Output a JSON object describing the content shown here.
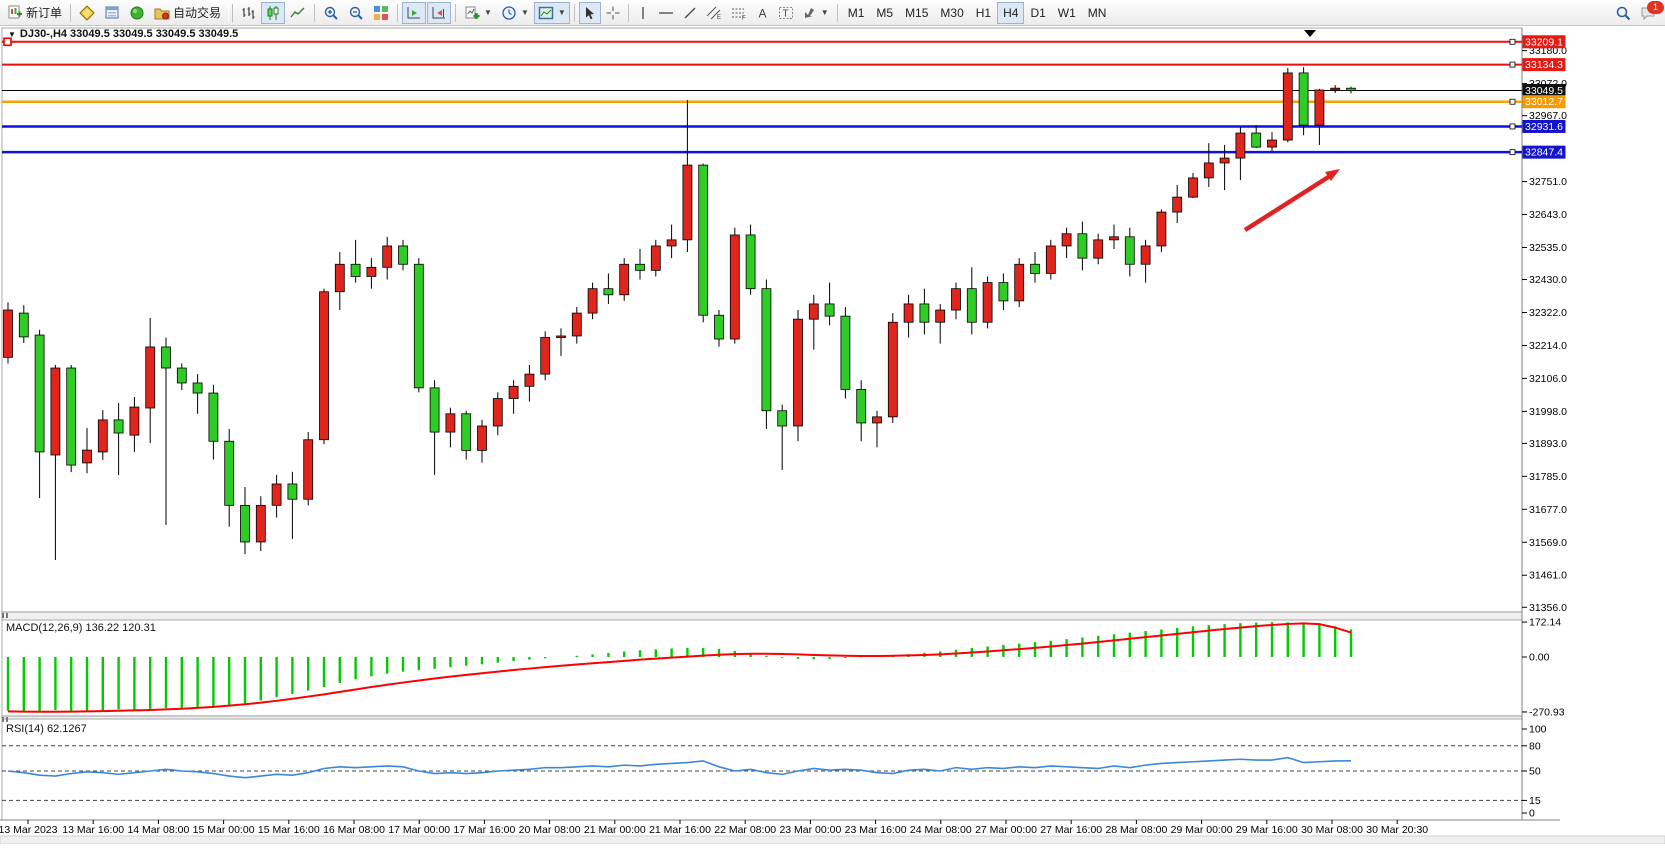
{
  "toolbar": {
    "new_order": "新订单",
    "auto_trading": "自动交易",
    "timeframes": [
      "M1",
      "M5",
      "M15",
      "M30",
      "H1",
      "H4",
      "D1",
      "W1",
      "MN"
    ],
    "active_timeframe": "H4",
    "notification_count": "1"
  },
  "chart": {
    "title": "DJ30-,H4  33049.5 33049.5 33049.5 33049.5",
    "symbol": "DJ30-",
    "timeframe": "H4",
    "current_price": "33049.5",
    "y_axis_ticks": [
      "33180.0",
      "33072.0",
      "32967.0",
      "32751.0",
      "32643.0",
      "32535.0",
      "32430.0",
      "32322.0",
      "32214.0",
      "32106.0",
      "31998.0",
      "31893.0",
      "31785.0",
      "31677.0",
      "31569.0",
      "31461.0",
      "31356.0"
    ],
    "price_badges": [
      {
        "label": "33209.1",
        "color": "#e31b12"
      },
      {
        "label": "33134.3",
        "color": "#e31b12"
      },
      {
        "label": "33049.5",
        "color": "#101010"
      },
      {
        "label": "33012.7",
        "color": "#f59b00"
      },
      {
        "label": "32931.6",
        "color": "#1414cc"
      },
      {
        "label": "32847.4",
        "color": "#1414cc"
      }
    ],
    "horizontal_lines": [
      {
        "level": 33209.1,
        "color": "#ee0f0f",
        "width": 2,
        "selected": true
      },
      {
        "level": 33134.3,
        "color": "#ee0f0f",
        "width": 2,
        "selected": false
      },
      {
        "level": 33012.7,
        "color": "#f7a208",
        "width": 2.5,
        "selected": false
      },
      {
        "level": 32931.6,
        "color": "#1010dd",
        "width": 2.5,
        "selected": false
      },
      {
        "level": 32847.4,
        "color": "#1010dd",
        "width": 2.5,
        "selected": false
      }
    ],
    "macd_label": "MACD(12,26,9) 136.22 120.31",
    "macd_axis": [
      "172.14",
      "0.00",
      "-270.93"
    ],
    "rsi_label": "RSI(14) 62.1267",
    "rsi_axis": [
      "100",
      "80",
      "50",
      "15",
      "0"
    ],
    "colors": {
      "bull": "#e0251c",
      "bear": "#2ecc24",
      "macd_hist": "#00cc00",
      "macd_signal": "#ff0000",
      "rsi_line": "#3d87d9",
      "trend_arrow": "#e02222"
    }
  },
  "chart_data": [
    {
      "type": "candlestick",
      "title": "DJ30-,H4",
      "timeframe": "H4",
      "ylim": [
        31356,
        33240
      ],
      "x_labels": [
        "13 Mar 2023",
        "13 Mar 16:00",
        "14 Mar 08:00",
        "15 Mar 00:00",
        "15 Mar 16:00",
        "16 Mar 08:00",
        "17 Mar 00:00",
        "17 Mar 16:00",
        "20 Mar 08:00",
        "21 Mar 00:00",
        "21 Mar 16:00",
        "22 Mar 08:00",
        "23 Mar 00:00",
        "23 Mar 16:00",
        "24 Mar 08:00",
        "27 Mar 00:00",
        "27 Mar 16:00",
        "28 Mar 08:00",
        "29 Mar 00:00",
        "29 Mar 16:00",
        "30 Mar 08:00",
        "30 Mar 20:30"
      ],
      "ohlc": [
        [
          32175,
          32355,
          32155,
          32330
        ],
        [
          32320,
          32346,
          32222,
          32242
        ],
        [
          32248,
          32265,
          31714,
          31865
        ],
        [
          31855,
          32150,
          31511,
          32140
        ],
        [
          32140,
          32150,
          31799,
          31822
        ],
        [
          31829,
          31943,
          31795,
          31871
        ],
        [
          31865,
          32002,
          31839,
          31970
        ],
        [
          31970,
          32025,
          31789,
          31927
        ],
        [
          31920,
          32045,
          31865,
          32012
        ],
        [
          32009,
          32304,
          31894,
          32209
        ],
        [
          32209,
          32240,
          31626,
          32140
        ],
        [
          32140,
          32155,
          32068,
          32091
        ],
        [
          32091,
          32120,
          31990,
          32058
        ],
        [
          32058,
          32085,
          31840,
          31900
        ],
        [
          31900,
          31940,
          31620,
          31690
        ],
        [
          31690,
          31750,
          31530,
          31570
        ],
        [
          31570,
          31720,
          31540,
          31690
        ],
        [
          31690,
          31790,
          31650,
          31760
        ],
        [
          31760,
          31800,
          31580,
          31710
        ],
        [
          31710,
          31930,
          31690,
          31905
        ],
        [
          31905,
          32400,
          31890,
          32390
        ],
        [
          32390,
          32520,
          32330,
          32480
        ],
        [
          32480,
          32560,
          32420,
          32440
        ],
        [
          32440,
          32500,
          32400,
          32470
        ],
        [
          32470,
          32570,
          32430,
          32540
        ],
        [
          32540,
          32560,
          32460,
          32480
        ],
        [
          32480,
          32500,
          32060,
          32075
        ],
        [
          32075,
          32100,
          31790,
          31930
        ],
        [
          31930,
          32010,
          31880,
          31990
        ],
        [
          31990,
          32000,
          31840,
          31870
        ],
        [
          31870,
          31970,
          31830,
          31950
        ],
        [
          31950,
          32060,
          31920,
          32040
        ],
        [
          32040,
          32100,
          31990,
          32080
        ],
        [
          32080,
          32150,
          32030,
          32120
        ],
        [
          32120,
          32260,
          32100,
          32240
        ],
        [
          32240,
          32270,
          32180,
          32245
        ],
        [
          32245,
          32340,
          32220,
          32320
        ],
        [
          32320,
          32420,
          32300,
          32400
        ],
        [
          32400,
          32450,
          32350,
          32380
        ],
        [
          32380,
          32500,
          32360,
          32480
        ],
        [
          32480,
          32530,
          32430,
          32460
        ],
        [
          32460,
          32560,
          32440,
          32540
        ],
        [
          32540,
          32610,
          32500,
          32560
        ],
        [
          32560,
          33018,
          32520,
          32805
        ],
        [
          32805,
          32810,
          32290,
          32313
        ],
        [
          32313,
          32330,
          32210,
          32235
        ],
        [
          32235,
          32600,
          32220,
          32576
        ],
        [
          32576,
          32610,
          32380,
          32400
        ],
        [
          32400,
          32430,
          31940,
          32000
        ],
        [
          32000,
          32020,
          31806,
          31950
        ],
        [
          31950,
          32330,
          31900,
          32300
        ],
        [
          32300,
          32380,
          32200,
          32350
        ],
        [
          32350,
          32420,
          32280,
          32310
        ],
        [
          32310,
          32340,
          32040,
          32070
        ],
        [
          32070,
          32100,
          31900,
          31960
        ],
        [
          31960,
          32000,
          31880,
          31980
        ],
        [
          31980,
          32320,
          31960,
          32290
        ],
        [
          32290,
          32380,
          32240,
          32350
        ],
        [
          32350,
          32400,
          32250,
          32290
        ],
        [
          32290,
          32350,
          32220,
          32330
        ],
        [
          32330,
          32420,
          32300,
          32400
        ],
        [
          32400,
          32470,
          32250,
          32290
        ],
        [
          32290,
          32440,
          32270,
          32420
        ],
        [
          32420,
          32450,
          32330,
          32360
        ],
        [
          32360,
          32500,
          32340,
          32480
        ],
        [
          32480,
          32520,
          32420,
          32450
        ],
        [
          32450,
          32560,
          32430,
          32540
        ],
        [
          32540,
          32600,
          32500,
          32580
        ],
        [
          32580,
          32620,
          32460,
          32500
        ],
        [
          32500,
          32580,
          32480,
          32560
        ],
        [
          32560,
          32610,
          32530,
          32570
        ],
        [
          32570,
          32600,
          32440,
          32480
        ],
        [
          32480,
          32560,
          32420,
          32540
        ],
        [
          32540,
          32660,
          32520,
          32651
        ],
        [
          32651,
          32740,
          32615,
          32700
        ],
        [
          32700,
          32779,
          32697,
          32763
        ],
        [
          32763,
          32877,
          32733,
          32812
        ],
        [
          32812,
          32871,
          32723,
          32828
        ],
        [
          32828,
          32930,
          32756,
          32910
        ],
        [
          32910,
          32936,
          32861,
          32864
        ],
        [
          32864,
          32913,
          32850,
          32887
        ],
        [
          32887,
          33123,
          32880,
          33107
        ],
        [
          33107,
          33126,
          32903,
          32936
        ],
        [
          32936,
          33055,
          32871,
          33051
        ],
        [
          33051,
          33067,
          33041,
          33057
        ],
        [
          33057,
          33062,
          33040,
          33049.5
        ]
      ]
    },
    {
      "type": "bar",
      "name": "MACD(12,26,9)",
      "current": [
        136.22,
        120.31
      ],
      "ylim": [
        -270.93,
        172.14
      ],
      "values": [
        -265,
        -270,
        -268,
        -262,
        -266,
        -270,
        -264,
        -258,
        -262,
        -256,
        -252,
        -258,
        -250,
        -245,
        -238,
        -228,
        -214,
        -198,
        -182,
        -165,
        -148,
        -128,
        -110,
        -95,
        -82,
        -72,
        -65,
        -58,
        -50,
        -43,
        -36,
        -28,
        -20,
        -13,
        -6,
        0,
        6,
        13,
        20,
        27,
        33,
        38,
        42,
        45,
        44,
        40,
        30,
        18,
        6,
        -4,
        -9,
        -11,
        -9,
        -5,
        -1,
        3,
        8,
        14,
        21,
        28,
        36,
        44,
        52,
        60,
        66,
        73,
        80,
        88,
        96,
        104,
        112,
        120,
        128,
        136,
        144,
        151,
        157,
        162,
        167,
        170,
        172,
        171,
        168,
        162,
        152,
        136.2
      ],
      "signal": [
        -268,
        -269,
        -270,
        -270,
        -269,
        -268,
        -267,
        -265,
        -263,
        -261,
        -258,
        -255,
        -251,
        -246,
        -240,
        -233,
        -225,
        -216,
        -206,
        -195,
        -184,
        -172,
        -160,
        -148,
        -137,
        -126,
        -116,
        -106,
        -97,
        -88,
        -80,
        -72,
        -64,
        -57,
        -50,
        -43,
        -37,
        -31,
        -25,
        -19,
        -13,
        -8,
        -3,
        2,
        7,
        11,
        14,
        16,
        16,
        15,
        13,
        10,
        8,
        6,
        5,
        5,
        6,
        8,
        10,
        13,
        17,
        22,
        27,
        33,
        39,
        45,
        52,
        59,
        66,
        74,
        82,
        90,
        98,
        106,
        114,
        122,
        130,
        138,
        145,
        152,
        158,
        163,
        166,
        162,
        145,
        120.3
      ]
    },
    {
      "type": "line",
      "name": "RSI(14)",
      "current": 62.1267,
      "ylim": [
        0,
        100
      ],
      "levels": [
        80,
        50,
        15
      ],
      "values": [
        50,
        48,
        45,
        44,
        47,
        49,
        48,
        46,
        48,
        50,
        52,
        50,
        49,
        47,
        44,
        42,
        44,
        46,
        45,
        48,
        53,
        55,
        54,
        55,
        56,
        55,
        50,
        47,
        48,
        47,
        48,
        50,
        51,
        52,
        54,
        54,
        55,
        56,
        55,
        57,
        56,
        58,
        59,
        60,
        62,
        55,
        50,
        52,
        48,
        46,
        50,
        53,
        51,
        52,
        51,
        48,
        47,
        51,
        52,
        50,
        54,
        52,
        54,
        53,
        55,
        54,
        56,
        55,
        54,
        53,
        56,
        54,
        57,
        59,
        60,
        61,
        62,
        63,
        64,
        63,
        63,
        66,
        60,
        61,
        62,
        62.1
      ]
    }
  ]
}
